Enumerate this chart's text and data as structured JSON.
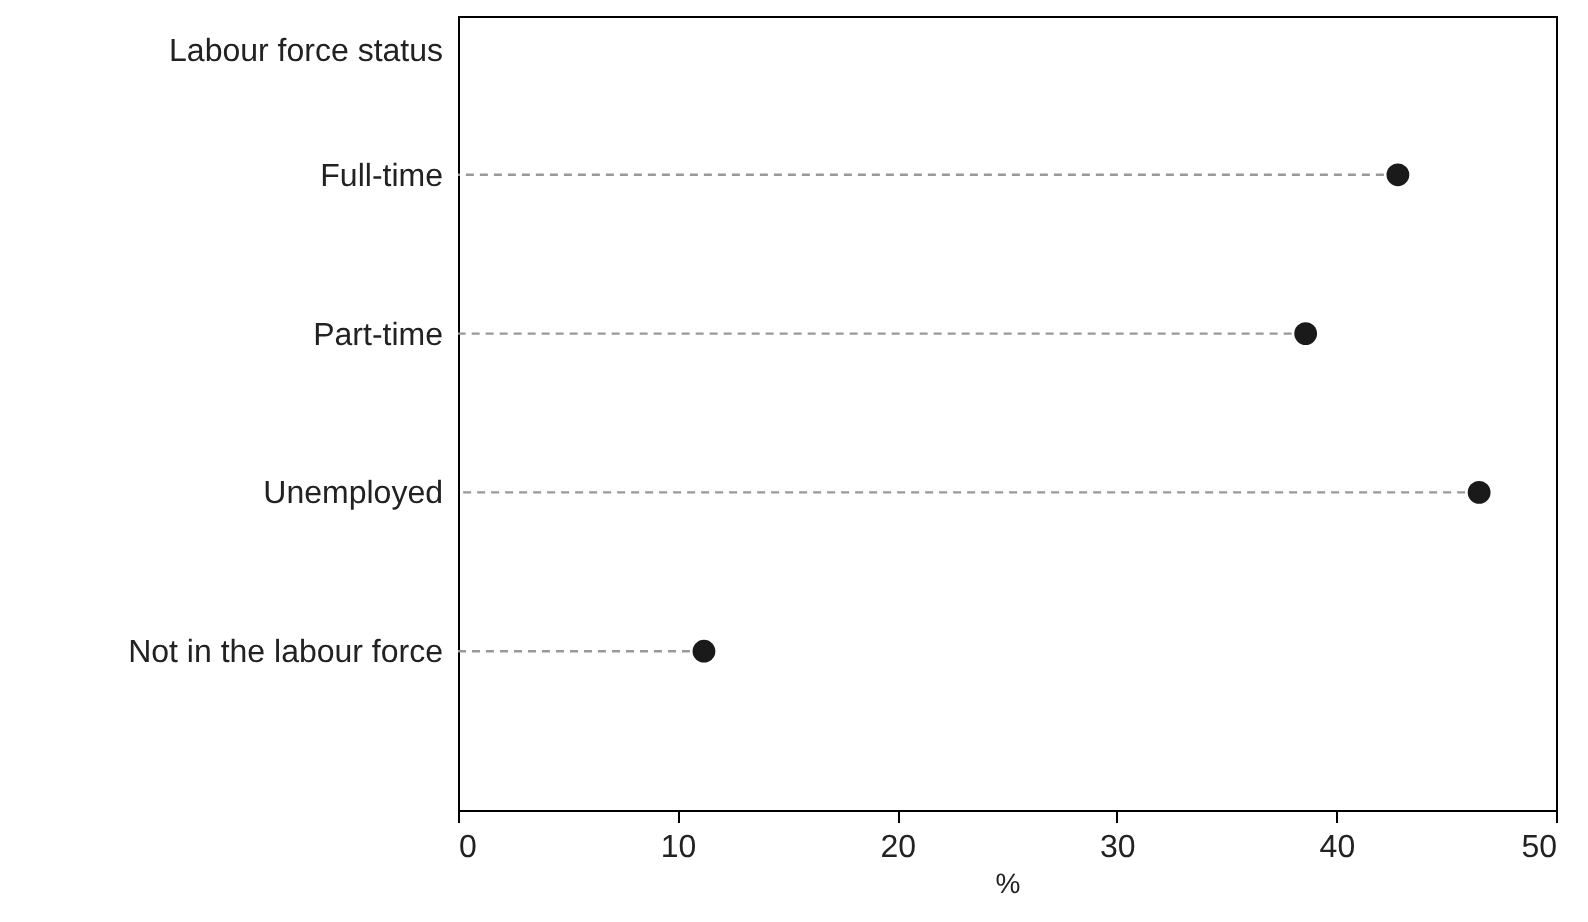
{
  "chart_data": {
    "type": "lollipop",
    "xlabel": "%",
    "ylabel": "Labour force status",
    "categories": [
      "Full-time",
      "Part-time",
      "Unemployed",
      "Not in the labour  force"
    ],
    "values": [
      42.8,
      38.6,
      46.5,
      11.2
    ],
    "color": "#1a1a1a",
    "orientation": "horizontal",
    "xlim": [
      0,
      50
    ],
    "xticks": [
      0,
      10,
      20,
      30,
      40,
      50
    ],
    "grid": false,
    "marker": "circle",
    "line_style": "dashed"
  }
}
